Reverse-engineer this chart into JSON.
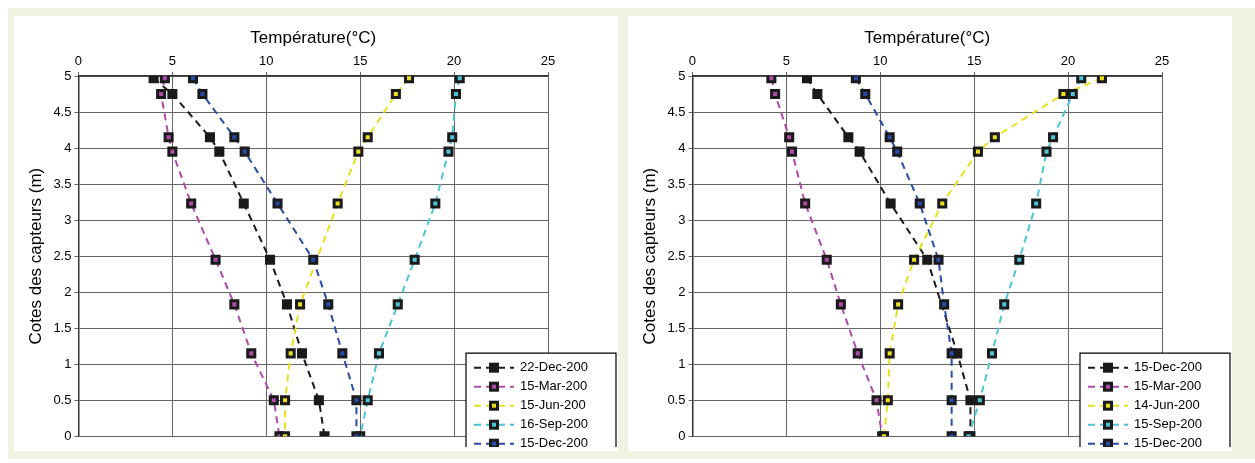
{
  "chart_data": [
    {
      "type": "line",
      "xlabel": "Température(°C)",
      "ylabel": "Cotes des capteurs (m)",
      "xlim": [
        0,
        25
      ],
      "xticks": [
        0,
        5,
        10,
        15,
        20,
        25
      ],
      "ylim": [
        0,
        5
      ],
      "yticks": [
        0,
        0.5,
        1,
        1.5,
        2,
        2.5,
        3,
        3.5,
        4,
        4.5,
        5
      ],
      "grid": true,
      "legend": "bottom right",
      "marker": "square",
      "line_style": "dashed",
      "series": [
        {
          "name": "22-Dec-200",
          "color": "#1a1a1a",
          "x": [
            4.0,
            5.0,
            7.0,
            7.5,
            8.8,
            10.2,
            11.1,
            11.9,
            12.8,
            13.1
          ],
          "values": [
            4.97,
            4.75,
            4.15,
            3.95,
            3.23,
            2.45,
            1.83,
            1.15,
            0.5,
            0
          ]
        },
        {
          "name": "15-Mar-200",
          "color": "#b04aa8",
          "x": [
            4.6,
            4.4,
            4.8,
            5.0,
            6.0,
            7.3,
            8.3,
            9.2,
            10.4,
            10.7
          ],
          "values": [
            4.97,
            4.75,
            4.15,
            3.95,
            3.23,
            2.45,
            1.83,
            1.15,
            0.5,
            0
          ]
        },
        {
          "name": "15-Jun-200",
          "color": "#e8e020",
          "x": [
            17.6,
            16.9,
            15.4,
            14.9,
            13.8,
            11.8,
            11.3,
            11.0,
            11.0
          ],
          "values": [
            4.97,
            4.75,
            4.15,
            3.95,
            3.23,
            1.83,
            1.15,
            0.5,
            0
          ]
        },
        {
          "name": "16-Sep-200",
          "color": "#4cc4d4",
          "x": [
            20.3,
            20.1,
            19.9,
            19.7,
            19.0,
            17.9,
            17.0,
            16.0,
            15.4,
            15.0
          ],
          "values": [
            4.97,
            4.75,
            4.15,
            3.95,
            3.23,
            2.45,
            1.83,
            1.15,
            0.5,
            0
          ]
        },
        {
          "name": "15-Dec-200",
          "color": "#2a4aa8",
          "x": [
            6.1,
            6.6,
            8.3,
            8.85,
            10.6,
            12.5,
            13.3,
            14.05,
            14.8,
            14.8
          ],
          "values": [
            4.97,
            4.75,
            4.15,
            3.95,
            3.23,
            2.45,
            1.83,
            1.15,
            0.5,
            0
          ]
        }
      ]
    },
    {
      "type": "line",
      "xlabel": "Température(°C)",
      "ylabel": "Cotes des capteurs (m)",
      "xlim": [
        0,
        25
      ],
      "xticks": [
        0,
        5,
        10,
        15,
        20,
        25
      ],
      "ylim": [
        0,
        5
      ],
      "yticks": [
        0,
        0.5,
        1,
        1.5,
        2,
        2.5,
        3,
        3.5,
        4,
        4.5,
        5
      ],
      "grid": true,
      "legend": "bottom right",
      "marker": "square",
      "line_style": "dashed",
      "series": [
        {
          "name": "15-Dec-200",
          "color": "#1a1a1a",
          "x": [
            6.1,
            6.65,
            8.3,
            8.9,
            10.55,
            12.5,
            14.1,
            14.8,
            14.8
          ],
          "values": [
            4.97,
            4.75,
            4.15,
            3.95,
            3.23,
            2.45,
            1.15,
            0.5,
            0
          ]
        },
        {
          "name": "15-Mar-200",
          "color": "#b04aa8",
          "x": [
            4.2,
            4.4,
            5.15,
            5.3,
            6.0,
            7.15,
            7.9,
            8.8,
            9.8,
            10.1
          ],
          "values": [
            4.97,
            4.75,
            4.15,
            3.95,
            3.23,
            2.45,
            1.83,
            1.15,
            0.5,
            0
          ]
        },
        {
          "name": "14-Jun-200",
          "color": "#e8e020",
          "x": [
            21.8,
            19.75,
            16.1,
            15.2,
            13.3,
            11.8,
            10.95,
            10.5,
            10.4,
            10.2
          ],
          "values": [
            4.97,
            4.75,
            4.15,
            3.95,
            3.23,
            2.45,
            1.83,
            1.15,
            0.5,
            0
          ]
        },
        {
          "name": "15-Sep-200",
          "color": "#4cc4d4",
          "x": [
            20.7,
            20.25,
            19.2,
            18.85,
            18.3,
            17.4,
            16.6,
            15.95,
            15.3,
            14.7
          ],
          "values": [
            4.97,
            4.75,
            4.15,
            3.95,
            3.23,
            2.45,
            1.83,
            1.15,
            0.5,
            0
          ]
        },
        {
          "name": "15-Dec-200",
          "color": "#2a4aa8",
          "x": [
            8.7,
            9.2,
            10.5,
            10.9,
            12.1,
            13.1,
            13.4,
            13.8,
            13.8,
            13.8
          ],
          "values": [
            4.97,
            4.75,
            4.15,
            3.95,
            3.23,
            2.45,
            1.83,
            1.15,
            0.5,
            0
          ]
        }
      ]
    }
  ]
}
